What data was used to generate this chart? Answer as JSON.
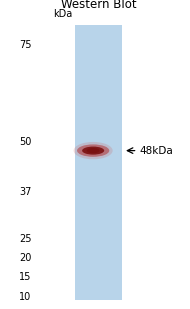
{
  "title": "Western Blot",
  "title_fontsize": 8.5,
  "kda_label": "kDa",
  "marker_values": [
    75,
    50,
    37,
    25,
    20,
    15,
    10
  ],
  "band_kda": 47.5,
  "lane_bg_color": "#b8d4ea",
  "band_color_dark": "#7a1010",
  "band_color_mid": "#b03030",
  "band_color_light": "#c87070",
  "fig_bg_color": "#ffffff",
  "y_min": 9,
  "y_max": 80,
  "label_fontsize": 7,
  "band_label_fontsize": 7.5
}
